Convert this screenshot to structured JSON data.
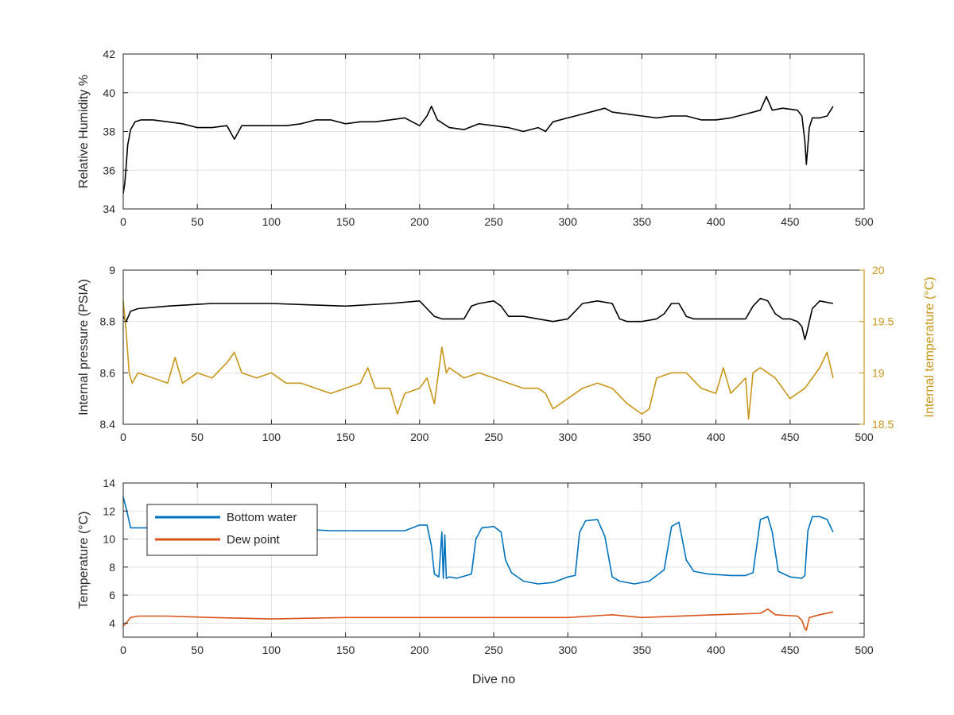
{
  "chart_data": [
    {
      "type": "line",
      "xlabel": "",
      "ylabel": "Relative Humidity %",
      "xlim": [
        0,
        500
      ],
      "ylim": [
        34,
        42
      ],
      "xticks": [
        0,
        50,
        100,
        150,
        200,
        250,
        300,
        350,
        400,
        450,
        500
      ],
      "yticks": [
        34,
        36,
        38,
        40,
        42
      ],
      "grid": true,
      "series": [
        {
          "color": "#000000",
          "x": [
            0,
            1,
            2,
            3,
            5,
            8,
            12,
            20,
            30,
            40,
            50,
            60,
            70,
            75,
            80,
            90,
            100,
            110,
            120,
            130,
            140,
            150,
            160,
            170,
            180,
            190,
            200,
            205,
            208,
            212,
            220,
            230,
            240,
            250,
            260,
            270,
            280,
            285,
            290,
            300,
            310,
            320,
            325,
            330,
            340,
            350,
            360,
            370,
            380,
            390,
            400,
            410,
            420,
            430,
            434,
            438,
            445,
            455,
            458,
            460,
            461,
            463,
            465,
            470,
            475,
            479
          ],
          "y": [
            34.8,
            35.3,
            36.2,
            37.3,
            38.1,
            38.5,
            38.6,
            38.6,
            38.5,
            38.4,
            38.2,
            38.2,
            38.3,
            37.6,
            38.3,
            38.3,
            38.3,
            38.3,
            38.4,
            38.6,
            38.6,
            38.4,
            38.5,
            38.5,
            38.6,
            38.7,
            38.3,
            38.8,
            39.3,
            38.6,
            38.2,
            38.1,
            38.4,
            38.3,
            38.2,
            38.0,
            38.2,
            38.0,
            38.5,
            38.7,
            38.9,
            39.1,
            39.2,
            39.0,
            38.9,
            38.8,
            38.7,
            38.8,
            38.8,
            38.6,
            38.6,
            38.7,
            38.9,
            39.1,
            39.8,
            39.1,
            39.2,
            39.1,
            38.8,
            37.5,
            36.3,
            38.2,
            38.7,
            38.7,
            38.8,
            39.3
          ]
        }
      ]
    },
    {
      "type": "line",
      "xlabel": "",
      "ylabel": "Internal pressure (PSIA)",
      "y2label": "Internal temperature (°C)",
      "xlim": [
        0,
        500
      ],
      "ylim": [
        8.4,
        9
      ],
      "y2lim": [
        18.5,
        20
      ],
      "xticks": [
        0,
        50,
        100,
        150,
        200,
        250,
        300,
        350,
        400,
        450,
        500
      ],
      "yticks": [
        8.4,
        8.6,
        8.8,
        9
      ],
      "y2ticks": [
        18.5,
        19,
        19.5,
        20
      ],
      "grid": true,
      "series": [
        {
          "axis": "left",
          "color": "#000000",
          "x": [
            0,
            2,
            5,
            10,
            30,
            60,
            100,
            150,
            180,
            200,
            205,
            210,
            215,
            220,
            230,
            235,
            240,
            250,
            255,
            260,
            270,
            280,
            290,
            300,
            310,
            320,
            330,
            335,
            340,
            350,
            360,
            365,
            370,
            375,
            380,
            385,
            390,
            400,
            410,
            420,
            425,
            430,
            435,
            440,
            445,
            450,
            455,
            458,
            460,
            461,
            463,
            465,
            470,
            479
          ],
          "y": [
            8.82,
            8.8,
            8.84,
            8.85,
            8.86,
            8.87,
            8.87,
            8.86,
            8.87,
            8.88,
            8.85,
            8.82,
            8.81,
            8.81,
            8.81,
            8.86,
            8.87,
            8.88,
            8.86,
            8.82,
            8.82,
            8.81,
            8.8,
            8.81,
            8.87,
            8.88,
            8.87,
            8.81,
            8.8,
            8.8,
            8.81,
            8.83,
            8.87,
            8.87,
            8.82,
            8.81,
            8.81,
            8.81,
            8.81,
            8.81,
            8.86,
            8.89,
            8.88,
            8.83,
            8.81,
            8.81,
            8.8,
            8.78,
            8.73,
            8.75,
            8.8,
            8.85,
            8.88,
            8.87
          ]
        },
        {
          "axis": "right",
          "color": "#C8961A",
          "x": [
            0,
            2,
            4,
            6,
            10,
            20,
            30,
            35,
            40,
            50,
            60,
            70,
            75,
            80,
            90,
            100,
            110,
            120,
            130,
            140,
            150,
            160,
            165,
            170,
            180,
            185,
            190,
            200,
            205,
            210,
            215,
            218,
            220,
            230,
            240,
            250,
            260,
            270,
            280,
            285,
            290,
            300,
            310,
            320,
            330,
            340,
            350,
            355,
            360,
            370,
            380,
            390,
            400,
            405,
            410,
            420,
            422,
            425,
            430,
            440,
            450,
            460,
            470,
            475,
            479
          ],
          "y": [
            19.7,
            19.4,
            19.0,
            18.9,
            19.0,
            18.95,
            18.9,
            19.15,
            18.9,
            19.0,
            18.95,
            19.1,
            19.2,
            19.0,
            18.95,
            19.0,
            18.9,
            18.9,
            18.85,
            18.8,
            18.85,
            18.9,
            19.05,
            18.85,
            18.85,
            18.6,
            18.8,
            18.85,
            18.95,
            18.7,
            19.25,
            19.0,
            19.05,
            18.95,
            19.0,
            18.95,
            18.9,
            18.85,
            18.85,
            18.8,
            18.65,
            18.75,
            18.85,
            18.9,
            18.85,
            18.7,
            18.6,
            18.65,
            18.95,
            19.0,
            19.0,
            18.85,
            18.8,
            19.05,
            18.8,
            18.95,
            18.55,
            19.0,
            19.05,
            18.95,
            18.75,
            18.85,
            19.05,
            19.2,
            18.95
          ]
        }
      ]
    },
    {
      "type": "line",
      "xlabel": "Dive no",
      "ylabel": "Temperature (°C)",
      "xlim": [
        0,
        500
      ],
      "ylim": [
        3,
        14
      ],
      "xticks": [
        0,
        50,
        100,
        150,
        200,
        250,
        300,
        350,
        400,
        450,
        500
      ],
      "yticks": [
        4,
        6,
        8,
        10,
        12,
        14
      ],
      "grid": true,
      "legend": "top-left",
      "series": [
        {
          "name": "Bottom water",
          "color": "#0072BD",
          "x": [
            0,
            2,
            5,
            10,
            20,
            40,
            60,
            80,
            100,
            120,
            140,
            160,
            180,
            190,
            200,
            205,
            208,
            210,
            213,
            215,
            216,
            217,
            218,
            220,
            225,
            235,
            238,
            242,
            250,
            255,
            258,
            262,
            270,
            280,
            290,
            300,
            305,
            308,
            312,
            320,
            325,
            330,
            335,
            345,
            355,
            365,
            370,
            375,
            380,
            385,
            395,
            410,
            420,
            425,
            430,
            435,
            438,
            442,
            450,
            458,
            460,
            462,
            465,
            470,
            475,
            479
          ],
          "y": [
            13.0,
            12.2,
            10.8,
            10.8,
            10.8,
            10.8,
            10.8,
            10.8,
            10.7,
            10.7,
            10.6,
            10.6,
            10.6,
            10.6,
            11.0,
            11.0,
            9.5,
            7.5,
            7.3,
            10.5,
            7.2,
            10.3,
            7.2,
            7.3,
            7.2,
            7.5,
            10.0,
            10.8,
            10.9,
            10.5,
            8.5,
            7.6,
            7.0,
            6.8,
            6.9,
            7.3,
            7.4,
            10.5,
            11.3,
            11.4,
            10.2,
            7.3,
            7.0,
            6.8,
            7.0,
            7.8,
            10.9,
            11.2,
            8.5,
            7.7,
            7.5,
            7.4,
            7.4,
            7.6,
            11.4,
            11.6,
            10.5,
            7.7,
            7.3,
            7.2,
            7.4,
            10.6,
            11.6,
            11.6,
            11.4,
            10.5
          ]
        },
        {
          "name": "Dew point",
          "color": "#D95319",
          "x": [
            0,
            2,
            5,
            10,
            30,
            60,
            100,
            150,
            200,
            250,
            300,
            330,
            350,
            400,
            430,
            435,
            440,
            455,
            458,
            460,
            461,
            463,
            470,
            479
          ],
          "y": [
            3.8,
            4.0,
            4.4,
            4.5,
            4.5,
            4.4,
            4.3,
            4.4,
            4.4,
            4.4,
            4.4,
            4.6,
            4.4,
            4.6,
            4.7,
            5.0,
            4.6,
            4.5,
            4.2,
            3.6,
            3.5,
            4.4,
            4.6,
            4.8
          ]
        }
      ]
    }
  ]
}
